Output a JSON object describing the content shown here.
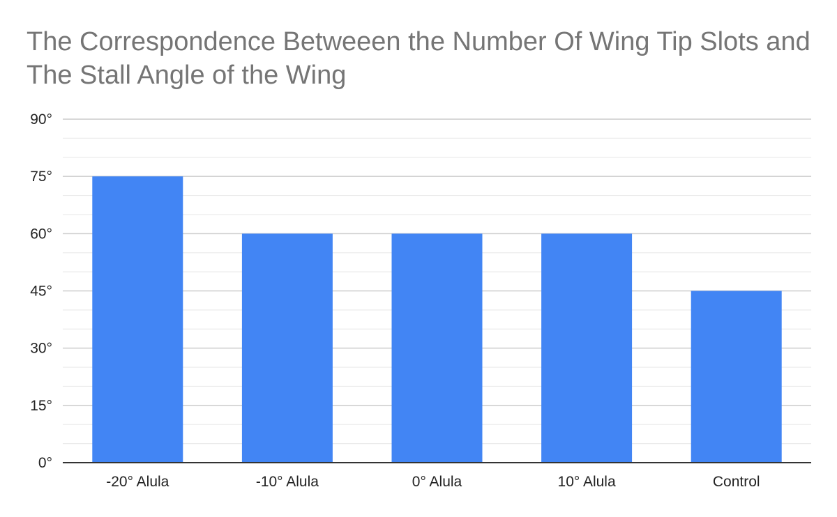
{
  "chart_data": {
    "type": "bar",
    "title": "The Correspondence Betweeen the Number Of Wing Tip Slots and The Stall Angle of the Wing",
    "xlabel": "",
    "ylabel": "",
    "categories": [
      "-20° Alula",
      "-10° Alula",
      "0° Alula",
      "10° Alula",
      "Control"
    ],
    "values": [
      75,
      60,
      60,
      60,
      45
    ],
    "ylim": [
      0,
      90
    ],
    "y_ticks": [
      0,
      15,
      30,
      45,
      60,
      75,
      90
    ],
    "y_tick_labels": [
      "0°",
      "15°",
      "30°",
      "45°",
      "60°",
      "75°",
      "90°"
    ],
    "bar_color": "#4285f4",
    "grid": true,
    "legend": "none"
  }
}
